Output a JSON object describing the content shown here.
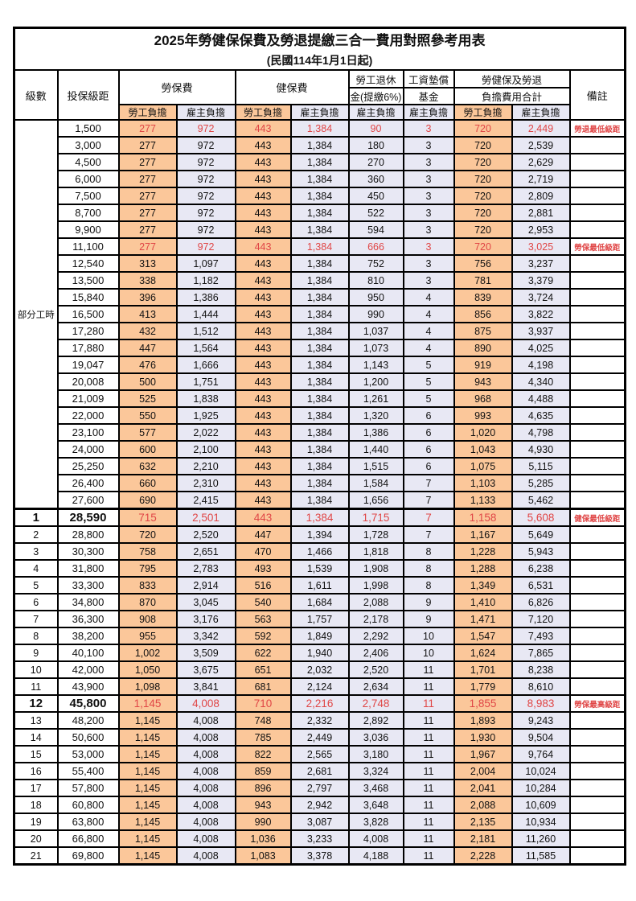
{
  "title": "2025年勞健保保費及勞退提繳三合一費用對照參考用表",
  "subtitle": "(民國114年1月1日起)",
  "header": {
    "level": "級數",
    "salary_bracket": "投保級距",
    "labor_insurance": "勞保費",
    "health_insurance": "健保費",
    "pension_line1": "勞工退休",
    "pension_line2": "金(提繳6%)",
    "wage_fund_line1": "工資墊償",
    "wage_fund_line2": "基金",
    "total_line1": "勞健保及勞退",
    "total_line2": "負擔費用合計",
    "remark": "備註",
    "employee_share": "勞工負擔",
    "employer_share": "雇主負擔"
  },
  "part_time": {
    "label": "部分工時",
    "rowspan": 23
  },
  "colors": {
    "employee_fill": "#FBC79A",
    "employer_fill": "#E8E8F4",
    "red_text": "#E04646",
    "border": "#000000"
  },
  "rows": [
    {
      "level": "",
      "salary": "1,500",
      "values": [
        "277",
        "972",
        "443",
        "1,384",
        "90",
        "3",
        "720",
        "2,449"
      ],
      "remark": "勞退最低級距",
      "red": true,
      "bold": false
    },
    {
      "level": "",
      "salary": "3,000",
      "values": [
        "277",
        "972",
        "443",
        "1,384",
        "180",
        "3",
        "720",
        "2,539"
      ],
      "remark": "",
      "red": false,
      "bold": false
    },
    {
      "level": "",
      "salary": "4,500",
      "values": [
        "277",
        "972",
        "443",
        "1,384",
        "270",
        "3",
        "720",
        "2,629"
      ],
      "remark": "",
      "red": false,
      "bold": false
    },
    {
      "level": "",
      "salary": "6,000",
      "values": [
        "277",
        "972",
        "443",
        "1,384",
        "360",
        "3",
        "720",
        "2,719"
      ],
      "remark": "",
      "red": false,
      "bold": false
    },
    {
      "level": "",
      "salary": "7,500",
      "values": [
        "277",
        "972",
        "443",
        "1,384",
        "450",
        "3",
        "720",
        "2,809"
      ],
      "remark": "",
      "red": false,
      "bold": false
    },
    {
      "level": "",
      "salary": "8,700",
      "values": [
        "277",
        "972",
        "443",
        "1,384",
        "522",
        "3",
        "720",
        "2,881"
      ],
      "remark": "",
      "red": false,
      "bold": false
    },
    {
      "level": "",
      "salary": "9,900",
      "values": [
        "277",
        "972",
        "443",
        "1,384",
        "594",
        "3",
        "720",
        "2,953"
      ],
      "remark": "",
      "red": false,
      "bold": false
    },
    {
      "level": "",
      "salary": "11,100",
      "values": [
        "277",
        "972",
        "443",
        "1,384",
        "666",
        "3",
        "720",
        "3,025"
      ],
      "remark": "勞保最低級距",
      "red": true,
      "bold": false
    },
    {
      "level": "",
      "salary": "12,540",
      "values": [
        "313",
        "1,097",
        "443",
        "1,384",
        "752",
        "3",
        "756",
        "3,237"
      ],
      "remark": "",
      "red": false,
      "bold": false
    },
    {
      "level": "",
      "salary": "13,500",
      "values": [
        "338",
        "1,182",
        "443",
        "1,384",
        "810",
        "3",
        "781",
        "3,379"
      ],
      "remark": "",
      "red": false,
      "bold": false
    },
    {
      "level": "",
      "salary": "15,840",
      "values": [
        "396",
        "1,386",
        "443",
        "1,384",
        "950",
        "4",
        "839",
        "3,724"
      ],
      "remark": "",
      "red": false,
      "bold": false
    },
    {
      "level": "",
      "salary": "16,500",
      "values": [
        "413",
        "1,444",
        "443",
        "1,384",
        "990",
        "4",
        "856",
        "3,822"
      ],
      "remark": "",
      "red": false,
      "bold": false
    },
    {
      "level": "",
      "salary": "17,280",
      "values": [
        "432",
        "1,512",
        "443",
        "1,384",
        "1,037",
        "4",
        "875",
        "3,937"
      ],
      "remark": "",
      "red": false,
      "bold": false
    },
    {
      "level": "",
      "salary": "17,880",
      "values": [
        "447",
        "1,564",
        "443",
        "1,384",
        "1,073",
        "4",
        "890",
        "4,025"
      ],
      "remark": "",
      "red": false,
      "bold": false
    },
    {
      "level": "",
      "salary": "19,047",
      "values": [
        "476",
        "1,666",
        "443",
        "1,384",
        "1,143",
        "5",
        "919",
        "4,198"
      ],
      "remark": "",
      "red": false,
      "bold": false
    },
    {
      "level": "",
      "salary": "20,008",
      "values": [
        "500",
        "1,751",
        "443",
        "1,384",
        "1,200",
        "5",
        "943",
        "4,340"
      ],
      "remark": "",
      "red": false,
      "bold": false
    },
    {
      "level": "",
      "salary": "21,009",
      "values": [
        "525",
        "1,838",
        "443",
        "1,384",
        "1,261",
        "5",
        "968",
        "4,488"
      ],
      "remark": "",
      "red": false,
      "bold": false
    },
    {
      "level": "",
      "salary": "22,000",
      "values": [
        "550",
        "1,925",
        "443",
        "1,384",
        "1,320",
        "6",
        "993",
        "4,635"
      ],
      "remark": "",
      "red": false,
      "bold": false
    },
    {
      "level": "",
      "salary": "23,100",
      "values": [
        "577",
        "2,022",
        "443",
        "1,384",
        "1,386",
        "6",
        "1,020",
        "4,798"
      ],
      "remark": "",
      "red": false,
      "bold": false
    },
    {
      "level": "",
      "salary": "24,000",
      "values": [
        "600",
        "2,100",
        "443",
        "1,384",
        "1,440",
        "6",
        "1,043",
        "4,930"
      ],
      "remark": "",
      "red": false,
      "bold": false
    },
    {
      "level": "",
      "salary": "25,250",
      "values": [
        "632",
        "2,210",
        "443",
        "1,384",
        "1,515",
        "6",
        "1,075",
        "5,115"
      ],
      "remark": "",
      "red": false,
      "bold": false
    },
    {
      "level": "",
      "salary": "26,400",
      "values": [
        "660",
        "2,310",
        "443",
        "1,384",
        "1,584",
        "7",
        "1,103",
        "5,285"
      ],
      "remark": "",
      "red": false,
      "bold": false
    },
    {
      "level": "",
      "salary": "27,600",
      "values": [
        "690",
        "2,415",
        "443",
        "1,384",
        "1,656",
        "7",
        "1,133",
        "5,462"
      ],
      "remark": "",
      "red": false,
      "bold": false
    },
    {
      "level": "1",
      "salary": "28,590",
      "values": [
        "715",
        "2,501",
        "443",
        "1,384",
        "1,715",
        "7",
        "1,158",
        "5,608"
      ],
      "remark": "健保最低級距",
      "red": true,
      "bold": true,
      "section_start": true
    },
    {
      "level": "2",
      "salary": "28,800",
      "values": [
        "720",
        "2,520",
        "447",
        "1,394",
        "1,728",
        "7",
        "1,167",
        "5,649"
      ],
      "remark": "",
      "red": false,
      "bold": false
    },
    {
      "level": "3",
      "salary": "30,300",
      "values": [
        "758",
        "2,651",
        "470",
        "1,466",
        "1,818",
        "8",
        "1,228",
        "5,943"
      ],
      "remark": "",
      "red": false,
      "bold": false
    },
    {
      "level": "4",
      "salary": "31,800",
      "values": [
        "795",
        "2,783",
        "493",
        "1,539",
        "1,908",
        "8",
        "1,288",
        "6,238"
      ],
      "remark": "",
      "red": false,
      "bold": false
    },
    {
      "level": "5",
      "salary": "33,300",
      "values": [
        "833",
        "2,914",
        "516",
        "1,611",
        "1,998",
        "8",
        "1,349",
        "6,531"
      ],
      "remark": "",
      "red": false,
      "bold": false
    },
    {
      "level": "6",
      "salary": "34,800",
      "values": [
        "870",
        "3,045",
        "540",
        "1,684",
        "2,088",
        "9",
        "1,410",
        "6,826"
      ],
      "remark": "",
      "red": false,
      "bold": false
    },
    {
      "level": "7",
      "salary": "36,300",
      "values": [
        "908",
        "3,176",
        "563",
        "1,757",
        "2,178",
        "9",
        "1,471",
        "7,120"
      ],
      "remark": "",
      "red": false,
      "bold": false
    },
    {
      "level": "8",
      "salary": "38,200",
      "values": [
        "955",
        "3,342",
        "592",
        "1,849",
        "2,292",
        "10",
        "1,547",
        "7,493"
      ],
      "remark": "",
      "red": false,
      "bold": false
    },
    {
      "level": "9",
      "salary": "40,100",
      "values": [
        "1,002",
        "3,509",
        "622",
        "1,940",
        "2,406",
        "10",
        "1,624",
        "7,865"
      ],
      "remark": "",
      "red": false,
      "bold": false
    },
    {
      "level": "10",
      "salary": "42,000",
      "values": [
        "1,050",
        "3,675",
        "651",
        "2,032",
        "2,520",
        "11",
        "1,701",
        "8,238"
      ],
      "remark": "",
      "red": false,
      "bold": false
    },
    {
      "level": "11",
      "salary": "43,900",
      "values": [
        "1,098",
        "3,841",
        "681",
        "2,124",
        "2,634",
        "11",
        "1,779",
        "8,610"
      ],
      "remark": "",
      "red": false,
      "bold": false
    },
    {
      "level": "12",
      "salary": "45,800",
      "values": [
        "1,145",
        "4,008",
        "710",
        "2,216",
        "2,748",
        "11",
        "1,855",
        "8,983"
      ],
      "remark": "勞保最高級距",
      "red": true,
      "bold": true
    },
    {
      "level": "13",
      "salary": "48,200",
      "values": [
        "1,145",
        "4,008",
        "748",
        "2,332",
        "2,892",
        "11",
        "1,893",
        "9,243"
      ],
      "remark": "",
      "red": false,
      "bold": false
    },
    {
      "level": "14",
      "salary": "50,600",
      "values": [
        "1,145",
        "4,008",
        "785",
        "2,449",
        "3,036",
        "11",
        "1,930",
        "9,504"
      ],
      "remark": "",
      "red": false,
      "bold": false
    },
    {
      "level": "15",
      "salary": "53,000",
      "values": [
        "1,145",
        "4,008",
        "822",
        "2,565",
        "3,180",
        "11",
        "1,967",
        "9,764"
      ],
      "remark": "",
      "red": false,
      "bold": false
    },
    {
      "level": "16",
      "salary": "55,400",
      "values": [
        "1,145",
        "4,008",
        "859",
        "2,681",
        "3,324",
        "11",
        "2,004",
        "10,024"
      ],
      "remark": "",
      "red": false,
      "bold": false
    },
    {
      "level": "17",
      "salary": "57,800",
      "values": [
        "1,145",
        "4,008",
        "896",
        "2,797",
        "3,468",
        "11",
        "2,041",
        "10,284"
      ],
      "remark": "",
      "red": false,
      "bold": false
    },
    {
      "level": "18",
      "salary": "60,800",
      "values": [
        "1,145",
        "4,008",
        "943",
        "2,942",
        "3,648",
        "11",
        "2,088",
        "10,609"
      ],
      "remark": "",
      "red": false,
      "bold": false
    },
    {
      "level": "19",
      "salary": "63,800",
      "values": [
        "1,145",
        "4,008",
        "990",
        "3,087",
        "3,828",
        "11",
        "2,135",
        "10,934"
      ],
      "remark": "",
      "red": false,
      "bold": false
    },
    {
      "level": "20",
      "salary": "66,800",
      "values": [
        "1,145",
        "4,008",
        "1,036",
        "3,233",
        "4,008",
        "11",
        "2,181",
        "11,260"
      ],
      "remark": "",
      "red": false,
      "bold": false
    },
    {
      "level": "21",
      "salary": "69,800",
      "values": [
        "1,145",
        "4,008",
        "1,083",
        "3,378",
        "4,188",
        "11",
        "2,228",
        "11,585"
      ],
      "remark": "",
      "red": false,
      "bold": false
    }
  ]
}
